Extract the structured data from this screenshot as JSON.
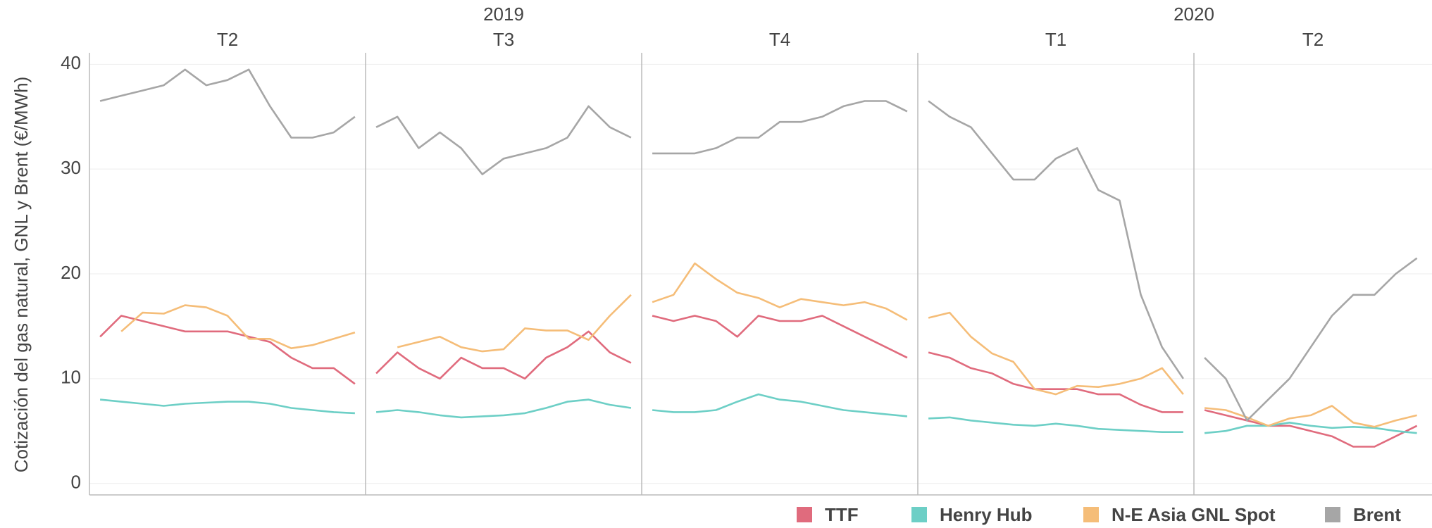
{
  "chart_data": {
    "type": "line",
    "ylabel": "Cotización del gas natural, GNL y Brent (€/MWh)",
    "years": [
      {
        "label": "2019",
        "quarters": [
          "T2",
          "T3",
          "T4"
        ]
      },
      {
        "label": "2020",
        "quarters": [
          "T1",
          "T2"
        ]
      }
    ],
    "ylim": [
      -1.1,
      41.1
    ],
    "yticks": [
      0,
      10,
      20,
      30,
      40
    ],
    "grid": true,
    "series": [
      {
        "name": "TTF",
        "color": "#e06b7d",
        "values": [
          [
            14,
            16,
            15.5,
            15,
            14.5,
            14.5,
            14.5,
            14,
            13.5,
            12,
            11,
            11,
            9.5
          ],
          [
            10.5,
            12.5,
            11,
            10,
            12,
            11,
            11,
            10,
            12,
            13,
            14.5,
            12.5,
            11.5
          ],
          [
            16,
            15.5,
            16,
            15.5,
            14,
            16,
            15.5,
            15.5,
            16,
            15,
            14,
            13,
            12
          ],
          [
            12.5,
            12,
            11,
            10.5,
            9.5,
            9,
            9,
            9,
            8.5,
            8.5,
            7.5,
            6.8,
            6.8
          ],
          [
            7,
            6.5,
            6,
            5.5,
            5.5,
            5,
            4.5,
            3.5,
            3.5,
            4.5,
            5.5
          ]
        ]
      },
      {
        "name": "Henry Hub",
        "color": "#6dcfc6",
        "values": [
          [
            8,
            7.8,
            7.6,
            7.4,
            7.6,
            7.7,
            7.8,
            7.8,
            7.6,
            7.2,
            7,
            6.8,
            6.7
          ],
          [
            6.8,
            7,
            6.8,
            6.5,
            6.3,
            6.4,
            6.5,
            6.7,
            7.2,
            7.8,
            8,
            7.5,
            7.2
          ],
          [
            7,
            6.8,
            6.8,
            7,
            7.8,
            8.5,
            8,
            7.8,
            7.4,
            7,
            6.8,
            6.6,
            6.4
          ],
          [
            6.2,
            6.3,
            6,
            5.8,
            5.6,
            5.5,
            5.7,
            5.5,
            5.2,
            5.1,
            5,
            4.9,
            4.9
          ],
          [
            4.8,
            5,
            5.5,
            5.5,
            5.8,
            5.5,
            5.3,
            5.4,
            5.3,
            5,
            4.8
          ]
        ]
      },
      {
        "name": "N-E Asia GNL Spot",
        "color": "#f5bd78",
        "values": [
          [
            null,
            14.5,
            16.3,
            16.2,
            17,
            16.8,
            16,
            13.8,
            13.8,
            12.9,
            13.2,
            13.8,
            14.4
          ],
          [
            null,
            13,
            13.5,
            14,
            13,
            12.6,
            12.8,
            14.8,
            14.6,
            14.6,
            13.7,
            16,
            18
          ],
          [
            17.3,
            18,
            21,
            19.5,
            18.2,
            17.7,
            16.8,
            17.6,
            17.3,
            17,
            17.3,
            16.7,
            15.6
          ],
          [
            15.8,
            16.3,
            14,
            12.4,
            11.6,
            9,
            8.5,
            9.3,
            9.2,
            9.5,
            10,
            11,
            8.5
          ],
          [
            7.2,
            7,
            6.3,
            5.5,
            6.2,
            6.5,
            7.4,
            5.8,
            5.4,
            6,
            6.5
          ]
        ]
      },
      {
        "name": "Brent",
        "color": "#a6a6a6",
        "values": [
          [
            36.5,
            37,
            37.5,
            38,
            39.5,
            38,
            38.5,
            39.5,
            36,
            33,
            33,
            33.5,
            35
          ],
          [
            34,
            35,
            32,
            33.5,
            32,
            29.5,
            31,
            31.5,
            32,
            33,
            36,
            34,
            33
          ],
          [
            31.5,
            31.5,
            31.5,
            32,
            33,
            33,
            34.5,
            34.5,
            35,
            36,
            36.5,
            36.5,
            35.5
          ],
          [
            36.5,
            35,
            34,
            31.5,
            29,
            29,
            31,
            32,
            28,
            27,
            18,
            13,
            10
          ],
          [
            12,
            10,
            6,
            8,
            10,
            13,
            16,
            18,
            18,
            20,
            21.5
          ]
        ]
      }
    ]
  }
}
